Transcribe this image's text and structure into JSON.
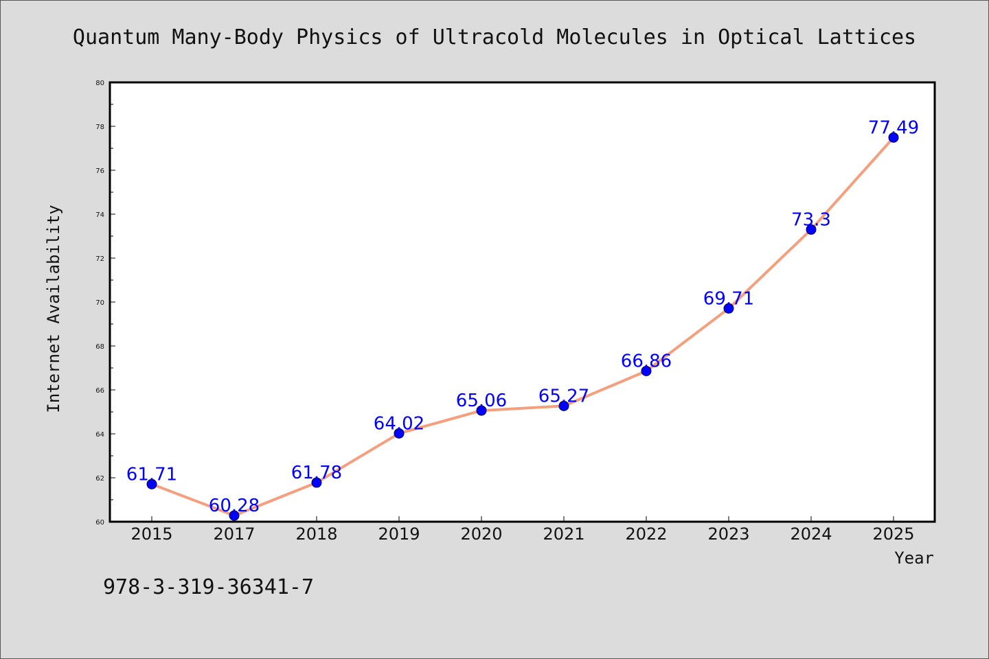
{
  "chart_data": {
    "type": "line",
    "title": "Quantum Many-Body Physics of Ultracold Molecules in Optical Lattices",
    "xlabel": "Year",
    "ylabel": "Internet Availability",
    "categories": [
      "2015",
      "2017",
      "2018",
      "2019",
      "2020",
      "2021",
      "2022",
      "2023",
      "2024",
      "2025"
    ],
    "series": [
      {
        "values": [
          61.71,
          60.28,
          61.78,
          64.02,
          65.06,
          65.27,
          66.86,
          69.71,
          73.3,
          77.49
        ],
        "data_labels": [
          "61.71",
          "60.28",
          "61.78",
          "64.02",
          "65.06",
          "65.27",
          "66.86",
          "69.71",
          "73.3",
          "77.49"
        ]
      }
    ],
    "ylim": [
      60,
      80
    ],
    "yticks": [
      "60",
      "62",
      "64",
      "66",
      "68",
      "70",
      "72",
      "74",
      "76",
      "78",
      "80"
    ],
    "grid": false,
    "legend": "none",
    "colors": {
      "line": "#f4a07e",
      "marker": "#0000ff",
      "data_label": "#0000ff",
      "plot_background": "#ffffff",
      "figure_background": "#dcdcdc"
    }
  },
  "footer": {
    "isbn": "978-3-319-36341-7"
  }
}
